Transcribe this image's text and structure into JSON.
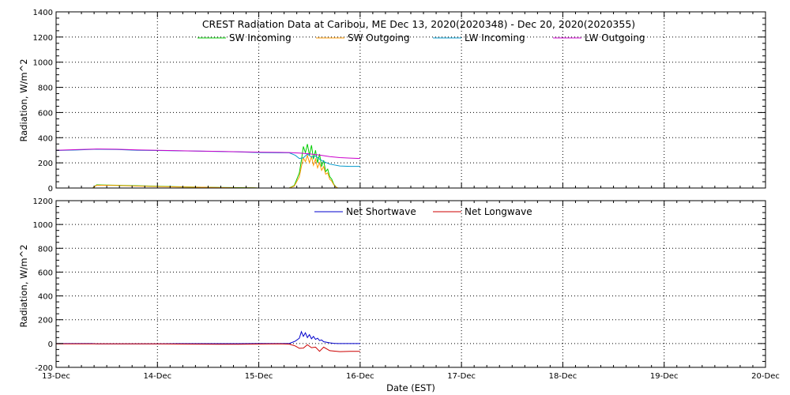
{
  "chart_data": [
    {
      "type": "line",
      "title": "CREST Radiation Data at Caribou, ME   Dec 13, 2020(2020348) - Dec 20, 2020(2020355)",
      "xlabel": "",
      "ylabel": "Radiation, W/m^2",
      "xlim": [
        0,
        7
      ],
      "ylim": [
        0,
        1400
      ],
      "yticks": [
        0,
        200,
        400,
        600,
        800,
        1000,
        1200,
        1400
      ],
      "grid": true,
      "legend": "top-center",
      "series": [
        {
          "name": "SW Incoming",
          "color": "#00cc00",
          "points": [
            [
              0.0,
              0
            ],
            [
              0.36,
              0
            ],
            [
              0.4,
              25
            ],
            [
              0.6,
              22
            ],
            [
              0.8,
              18
            ],
            [
              1.0,
              14
            ],
            [
              1.2,
              10
            ],
            [
              1.4,
              7
            ],
            [
              1.6,
              5
            ],
            [
              1.8,
              3
            ],
            [
              1.95,
              1
            ],
            [
              2.0,
              0
            ],
            [
              2.3,
              0
            ],
            [
              2.35,
              20
            ],
            [
              2.4,
              120
            ],
            [
              2.42,
              220
            ],
            [
              2.44,
              330
            ],
            [
              2.46,
              280
            ],
            [
              2.48,
              350
            ],
            [
              2.5,
              260
            ],
            [
              2.52,
              340
            ],
            [
              2.54,
              230
            ],
            [
              2.56,
              300
            ],
            [
              2.58,
              200
            ],
            [
              2.6,
              270
            ],
            [
              2.62,
              170
            ],
            [
              2.64,
              220
            ],
            [
              2.66,
              130
            ],
            [
              2.68,
              150
            ],
            [
              2.7,
              90
            ],
            [
              2.72,
              70
            ],
            [
              2.74,
              30
            ],
            [
              2.76,
              10
            ],
            [
              2.78,
              0
            ],
            [
              3.0,
              0
            ]
          ]
        },
        {
          "name": "SW Outgoing",
          "color": "#ff9900",
          "points": [
            [
              0.0,
              0
            ],
            [
              0.36,
              0
            ],
            [
              0.4,
              22
            ],
            [
              0.6,
              20
            ],
            [
              0.8,
              16
            ],
            [
              1.0,
              12
            ],
            [
              1.2,
              9
            ],
            [
              1.4,
              6
            ],
            [
              1.6,
              4
            ],
            [
              1.8,
              2
            ],
            [
              1.95,
              1
            ],
            [
              2.0,
              0
            ],
            [
              2.3,
              0
            ],
            [
              2.35,
              15
            ],
            [
              2.4,
              90
            ],
            [
              2.42,
              170
            ],
            [
              2.44,
              240
            ],
            [
              2.46,
              210
            ],
            [
              2.48,
              260
            ],
            [
              2.5,
              200
            ],
            [
              2.52,
              250
            ],
            [
              2.54,
              180
            ],
            [
              2.56,
              230
            ],
            [
              2.58,
              160
            ],
            [
              2.6,
              200
            ],
            [
              2.62,
              140
            ],
            [
              2.64,
              170
            ],
            [
              2.66,
              110
            ],
            [
              2.68,
              120
            ],
            [
              2.7,
              70
            ],
            [
              2.72,
              55
            ],
            [
              2.74,
              25
            ],
            [
              2.76,
              8
            ],
            [
              2.78,
              0
            ],
            [
              3.0,
              0
            ]
          ]
        },
        {
          "name": "LW Incoming",
          "color": "#0099cc",
          "points": [
            [
              0.0,
              298
            ],
            [
              0.2,
              302
            ],
            [
              0.4,
              308
            ],
            [
              0.6,
              306
            ],
            [
              0.8,
              300
            ],
            [
              1.0,
              298
            ],
            [
              1.2,
              296
            ],
            [
              1.4,
              293
            ],
            [
              1.6,
              290
            ],
            [
              1.8,
              287
            ],
            [
              2.0,
              282
            ],
            [
              2.2,
              280
            ],
            [
              2.3,
              280
            ],
            [
              2.36,
              260
            ],
            [
              2.4,
              235
            ],
            [
              2.44,
              240
            ],
            [
              2.48,
              270
            ],
            [
              2.52,
              245
            ],
            [
              2.56,
              255
            ],
            [
              2.6,
              230
            ],
            [
              2.64,
              210
            ],
            [
              2.7,
              190
            ],
            [
              2.8,
              175
            ],
            [
              2.9,
              172
            ],
            [
              3.0,
              172
            ]
          ]
        },
        {
          "name": "LW Outgoing",
          "color": "#cc00cc",
          "points": [
            [
              0.0,
              300
            ],
            [
              0.2,
              305
            ],
            [
              0.4,
              310
            ],
            [
              0.6,
              308
            ],
            [
              0.8,
              303
            ],
            [
              1.0,
              300
            ],
            [
              1.2,
              297
            ],
            [
              1.4,
              294
            ],
            [
              1.6,
              291
            ],
            [
              1.8,
              288
            ],
            [
              2.0,
              285
            ],
            [
              2.2,
              283
            ],
            [
              2.3,
              282
            ],
            [
              2.4,
              278
            ],
            [
              2.5,
              272
            ],
            [
              2.6,
              262
            ],
            [
              2.7,
              250
            ],
            [
              2.8,
              242
            ],
            [
              2.9,
              238
            ],
            [
              3.0,
              235
            ]
          ]
        }
      ]
    },
    {
      "type": "line",
      "title": "",
      "xlabel": "Date (EST)",
      "ylabel": "Radiation, W/m^2",
      "xlim": [
        0,
        7
      ],
      "ylim": [
        -200,
        1200
      ],
      "yticks": [
        -200,
        0,
        200,
        400,
        600,
        800,
        1000,
        1200
      ],
      "categories": [
        "13-Dec",
        "14-Dec",
        "15-Dec",
        "16-Dec",
        "17-Dec",
        "18-Dec",
        "19-Dec",
        "20-Dec"
      ],
      "grid": true,
      "legend": "top-center",
      "series": [
        {
          "name": "Net Shortwave",
          "color": "#0000cc",
          "points": [
            [
              0.0,
              0
            ],
            [
              0.36,
              0
            ],
            [
              0.4,
              -3
            ],
            [
              0.6,
              -2
            ],
            [
              0.8,
              -2
            ],
            [
              1.0,
              -2
            ],
            [
              1.2,
              -1
            ],
            [
              1.4,
              -1
            ],
            [
              1.6,
              -1
            ],
            [
              1.8,
              -1
            ],
            [
              2.0,
              0
            ],
            [
              2.3,
              0
            ],
            [
              2.36,
              20
            ],
            [
              2.4,
              45
            ],
            [
              2.42,
              100
            ],
            [
              2.44,
              60
            ],
            [
              2.46,
              90
            ],
            [
              2.48,
              50
            ],
            [
              2.5,
              75
            ],
            [
              2.52,
              40
            ],
            [
              2.54,
              60
            ],
            [
              2.56,
              35
            ],
            [
              2.58,
              45
            ],
            [
              2.6,
              25
            ],
            [
              2.62,
              30
            ],
            [
              2.64,
              15
            ],
            [
              2.66,
              12
            ],
            [
              2.7,
              6
            ],
            [
              2.74,
              2
            ],
            [
              2.78,
              0
            ],
            [
              3.0,
              0
            ]
          ]
        },
        {
          "name": "Net Longwave",
          "color": "#cc0000",
          "points": [
            [
              0.0,
              -2
            ],
            [
              0.2,
              -3
            ],
            [
              0.4,
              -2
            ],
            [
              0.6,
              -2
            ],
            [
              0.8,
              -3
            ],
            [
              1.0,
              -2
            ],
            [
              1.2,
              -4
            ],
            [
              1.4,
              -5
            ],
            [
              1.6,
              -6
            ],
            [
              1.8,
              -6
            ],
            [
              2.0,
              -4
            ],
            [
              2.2,
              -3
            ],
            [
              2.3,
              -5
            ],
            [
              2.36,
              -20
            ],
            [
              2.4,
              -40
            ],
            [
              2.44,
              -38
            ],
            [
              2.48,
              -10
            ],
            [
              2.52,
              -35
            ],
            [
              2.56,
              -30
            ],
            [
              2.6,
              -65
            ],
            [
              2.64,
              -30
            ],
            [
              2.7,
              -60
            ],
            [
              2.8,
              -68
            ],
            [
              2.9,
              -66
            ],
            [
              3.0,
              -65
            ]
          ]
        }
      ]
    }
  ]
}
